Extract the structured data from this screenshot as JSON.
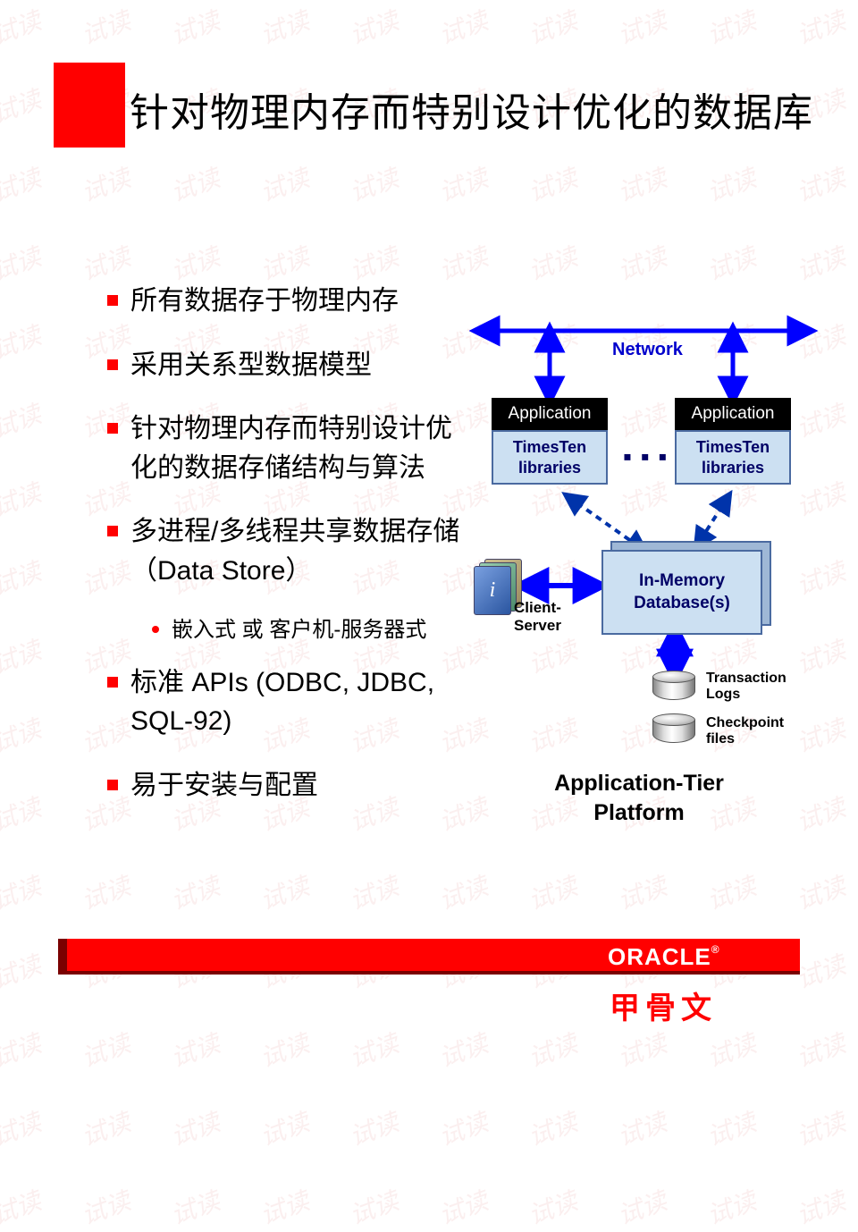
{
  "watermark_text": "试读",
  "header": {
    "title": "针对物理内存而特别设计优化的数据库",
    "square_color": "#ff0000"
  },
  "bullets": [
    {
      "level": 1,
      "text": "所有数据存于物理内存"
    },
    {
      "level": 1,
      "text": "采用关系型数据模型"
    },
    {
      "level": 1,
      "text": "针对物理内存而特别设计优化的数据存储结构与算法"
    },
    {
      "level": 1,
      "text": "多进程/多线程共享数据存储（Data Store）"
    },
    {
      "level": 2,
      "text": "嵌入式 或 客户机-服务器式"
    },
    {
      "level": 1,
      "text": "标准 APIs (ODBC, JDBC, SQL-92)"
    },
    {
      "level": 1,
      "text": "易于安装与配置"
    }
  ],
  "diagram": {
    "network_label": "Network",
    "app1": {
      "top": "Application",
      "bottom": "TimesTen libraries"
    },
    "app2": {
      "top": "Application",
      "bottom": "TimesTen libraries"
    },
    "ellipsis": "▪ ▪ ▪",
    "db_label": "In-Memory Database(s)",
    "client_server_label": "Client-Server",
    "client_icon_letter": "i",
    "txn_logs_label": "Transaction Logs",
    "chkpt_label": "Checkpoint files",
    "platform_label": "Application-Tier Platform",
    "colors": {
      "network_blue": "#0000cc",
      "box_fill": "#cce0f2",
      "box_border": "#4a6aa0",
      "app_header_bg": "#000000",
      "app_header_fg": "#ffffff",
      "dark_text": "#000066"
    }
  },
  "footer": {
    "brand": "ORACLE",
    "brand_cn": "甲骨文",
    "bar_dark": "#7a0000",
    "bar_bright": "#ff0000"
  }
}
